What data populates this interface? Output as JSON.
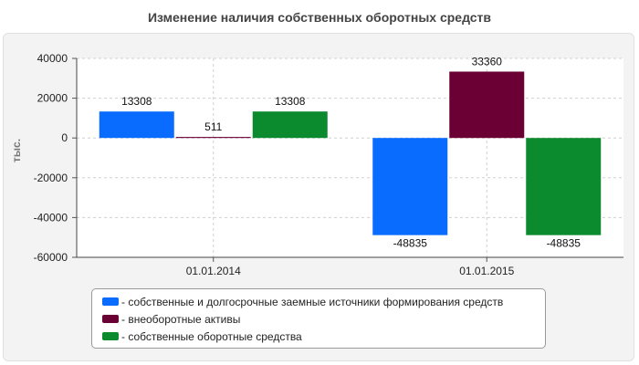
{
  "chart_data": {
    "type": "bar",
    "title": "Изменение наличия собственных оборотных средств",
    "xlabel": "",
    "ylabel": "тыс.",
    "categories": [
      "01.01.2014",
      "01.01.2015"
    ],
    "ylim": [
      -60000,
      40000
    ],
    "yticks": [
      40000,
      20000,
      0,
      -20000,
      -40000,
      -60000
    ],
    "grid": true,
    "legend_position": "bottom",
    "series": [
      {
        "name": "- собственные и долгосрочные заемные источники формирования средств",
        "values": [
          13308,
          -48835
        ],
        "color": "#0a6cff"
      },
      {
        "name": "- внеоборотные активы",
        "values": [
          511,
          33360
        ],
        "color": "#6a0033"
      },
      {
        "name": "- собственные оборотные средства",
        "values": [
          13308,
          -48835
        ],
        "color": "#0c8a2e"
      }
    ]
  }
}
